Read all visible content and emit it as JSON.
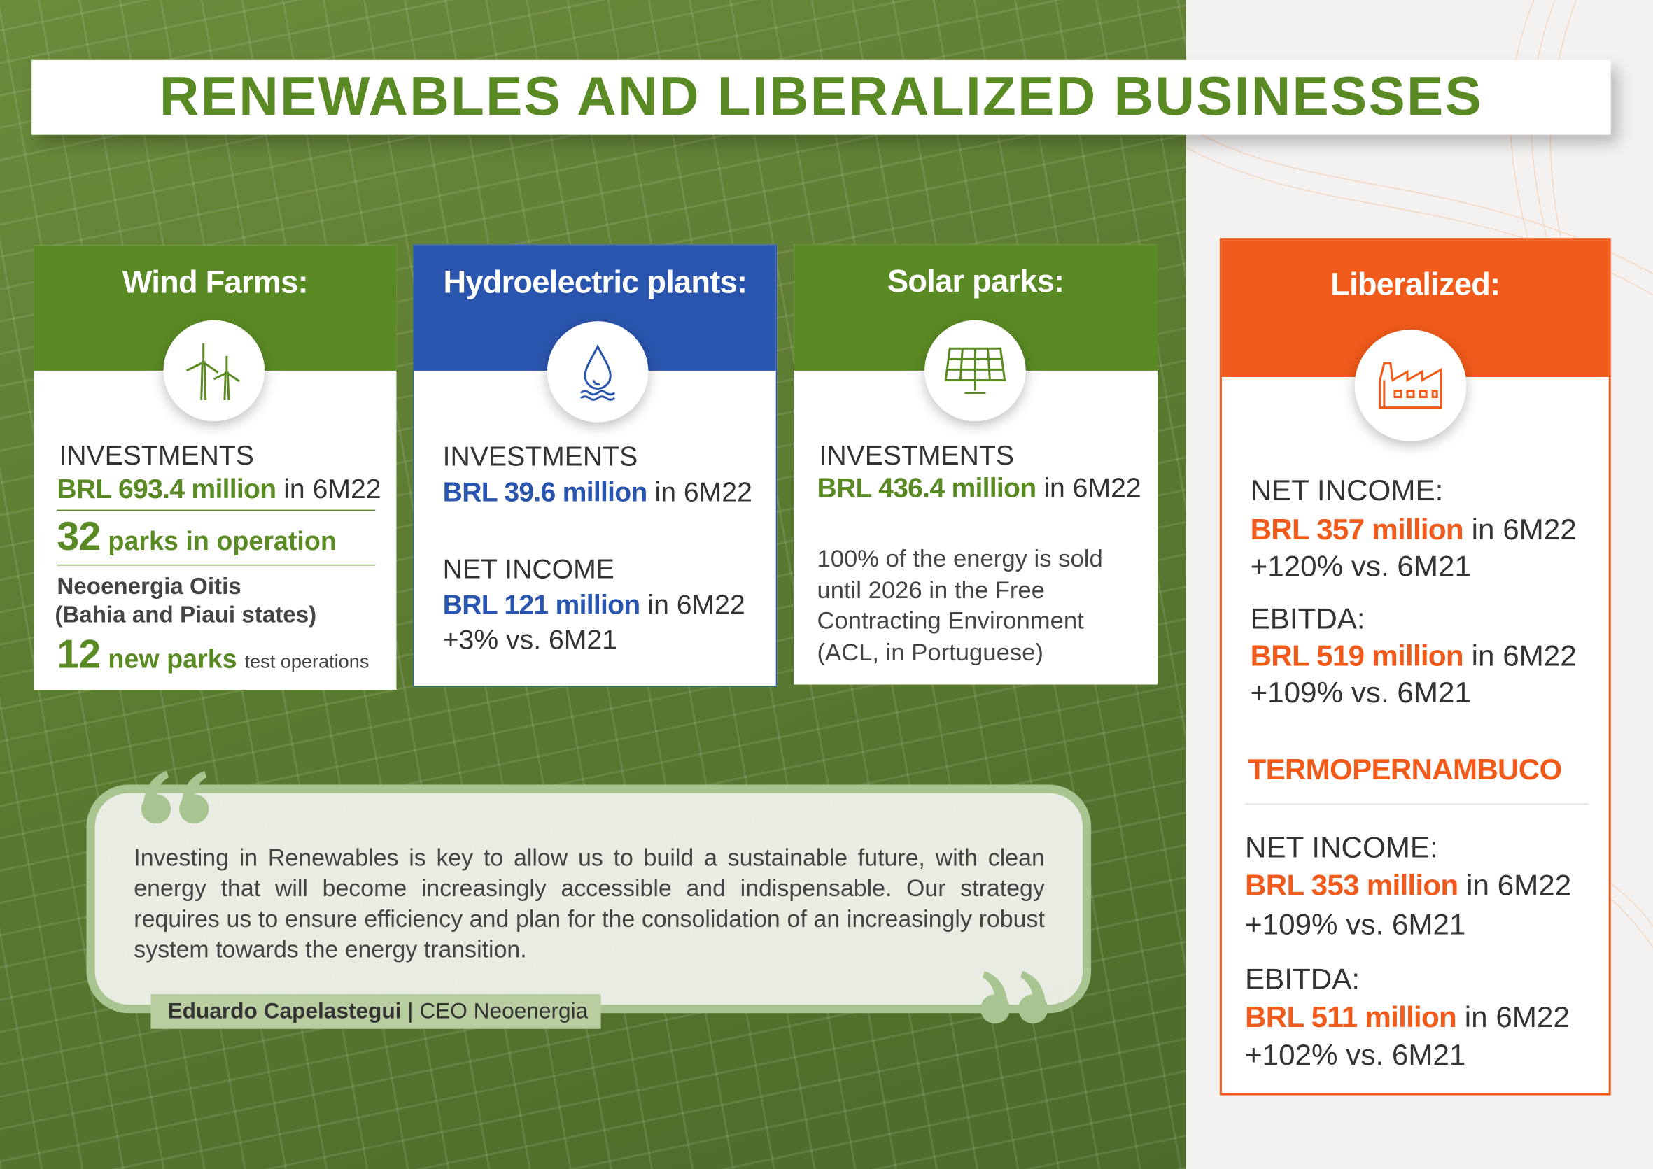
{
  "header": {
    "title": "RENEWABLES AND LIBERALIZED BUSINESSES"
  },
  "wind": {
    "title": "Wind Farms:",
    "investments_label": "INVESTMENTS",
    "investments_value": "BRL 693.4 million",
    "investments_period": "in 6M22",
    "parks_count": 32,
    "parks_text": "parks in operation",
    "project": "Neoenergia Oitis",
    "project_location": "(Bahia and Piaui states)",
    "new_parks_count": 12,
    "new_parks_text": "new parks",
    "new_parks_note": "test operations"
  },
  "hydro": {
    "title": "Hydroelectric plants:",
    "investments_label": "INVESTMENTS",
    "investments_value": "BRL 39.6 million",
    "investments_period": "in 6M22",
    "net_income_label": "NET INCOME",
    "net_income_value": "BRL 121 million",
    "net_income_period": "in 6M22",
    "net_income_change": "+3% vs. 6M21"
  },
  "solar": {
    "title": "Solar parks:",
    "investments_label": "INVESTMENTS",
    "investments_value": "BRL 436.4 million",
    "investments_period": "in 6M22",
    "note_lines": [
      "100% of the energy is sold",
      "until 2026 in the Free",
      "Contracting Environment",
      "(ACL, in Portuguese)"
    ]
  },
  "liberalized": {
    "title": "Liberalized:",
    "net_income": {
      "label": "NET INCOME:",
      "value": "BRL 357 million",
      "period": "in 6M22",
      "change": "+120% vs. 6M21"
    },
    "ebitda": {
      "label": "EBITDA:",
      "value": "BRL 519 million",
      "period": "in 6M22",
      "change": "+109% vs. 6M21"
    },
    "subsidiary": {
      "name": "TERMOPERNAMBUCO",
      "net_income": {
        "label": "NET INCOME:",
        "value": "BRL 353 million",
        "period": "in 6M22",
        "change": "+109% vs. 6M21"
      },
      "ebitda": {
        "label": "EBITDA:",
        "value": "BRL 511 million",
        "period": "in 6M22",
        "change": "+102% vs. 6M21"
      }
    }
  },
  "quote": {
    "text": "Investing in Renewables is key to allow us to build a sustainable future, with clean energy that will become increasingly accessible and indispensable. Our strategy requires us to ensure efficiency and plan for the consolidation of an increasingly robust system towards the energy transition.",
    "author": "Eduardo Capelastegui",
    "role": "| CEO Neoenergia"
  }
}
